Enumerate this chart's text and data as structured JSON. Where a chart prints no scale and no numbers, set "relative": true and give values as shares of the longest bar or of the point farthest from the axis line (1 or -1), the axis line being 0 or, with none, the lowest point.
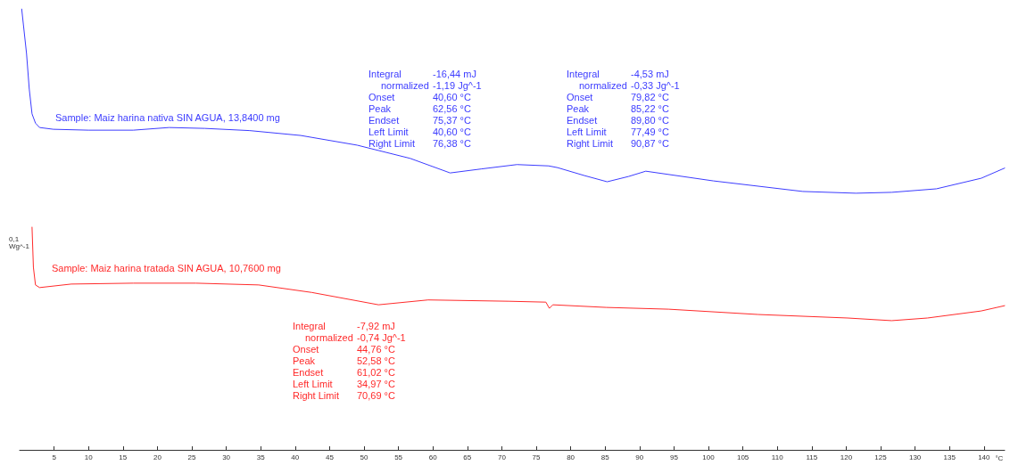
{
  "chart_data": {
    "type": "line",
    "relative": true,
    "xlabel": "°C",
    "ylabel": "0,1 Wg^-1",
    "xlim": [
      0,
      143
    ],
    "xticks": [
      5,
      10,
      15,
      20,
      25,
      30,
      35,
      40,
      45,
      50,
      55,
      60,
      65,
      70,
      75,
      80,
      85,
      90,
      95,
      100,
      105,
      110,
      115,
      120,
      125,
      130,
      135,
      140
    ],
    "grid": false,
    "legend": false,
    "marker": "none",
    "line_style": "solid",
    "series": [
      {
        "name": "Sample: Maiz harina nativa SIN AGUA, 13,8400 mg",
        "color": "#3c3cff",
        "x": [
          0.3,
          1.0,
          1.4,
          1.8,
          2.3,
          2.9,
          4.9,
          10.0,
          16.5,
          21.7,
          26.9,
          33.4,
          40.8,
          49.0,
          56.7,
          62.5,
          67.0,
          72.2,
          76.8,
          78.1,
          82.0,
          85.3,
          88.4,
          90.9,
          100.7,
          113.7,
          121.4,
          126.6,
          133.1,
          139.6,
          143.0
        ],
        "values": [
          1.0,
          0.899,
          0.818,
          0.762,
          0.741,
          0.731,
          0.727,
          0.725,
          0.725,
          0.731,
          0.729,
          0.724,
          0.713,
          0.691,
          0.661,
          0.628,
          0.637,
          0.647,
          0.644,
          0.64,
          0.622,
          0.608,
          0.62,
          0.632,
          0.61,
          0.586,
          0.582,
          0.584,
          0.592,
          0.616,
          0.639
        ]
      },
      {
        "name": "Sample: Maiz harina tratada SIN AGUA, 10,7600 mg",
        "color": "#ff2a2a",
        "x": [
          1.8,
          2.0,
          2.3,
          2.9,
          7.5,
          16.5,
          25.6,
          34.7,
          42.4,
          52.1,
          59.3,
          71.0,
          76.4,
          76.9,
          77.4,
          85.2,
          94.2,
          107.2,
          120.2,
          126.6,
          131.8,
          139.6,
          143.0
        ],
        "values": [
          0.505,
          0.414,
          0.374,
          0.368,
          0.376,
          0.378,
          0.378,
          0.374,
          0.357,
          0.329,
          0.34,
          0.337,
          0.335,
          0.321,
          0.329,
          0.323,
          0.319,
          0.307,
          0.299,
          0.293,
          0.299,
          0.315,
          0.327
        ]
      }
    ],
    "annotations": [
      "Integral -16,44 mJ",
      "normalized -1,19 Jg^-1",
      "Onset 40,60 °C",
      "Peak 62,56 °C",
      "Endset 75,37 °C",
      "Left Limit 40,60 °C",
      "Right Limit 76,38 °C",
      "Integral -4,53 mJ",
      "normalized -0,33 Jg^-1",
      "Onset 79,82 °C",
      "Peak 85,22 °C",
      "Endset 89,80 °C",
      "Left Limit 77,49 °C",
      "Right Limit 90,87 °C",
      "Integral -7,92 mJ",
      "normalized -0,74 Jg^-1",
      "Onset 44,76 °C",
      "Peak 52,58 °C",
      "Endset 61,02 °C",
      "Left Limit 34,97 °C",
      "Right Limit 70,69 °C"
    ]
  }
}
